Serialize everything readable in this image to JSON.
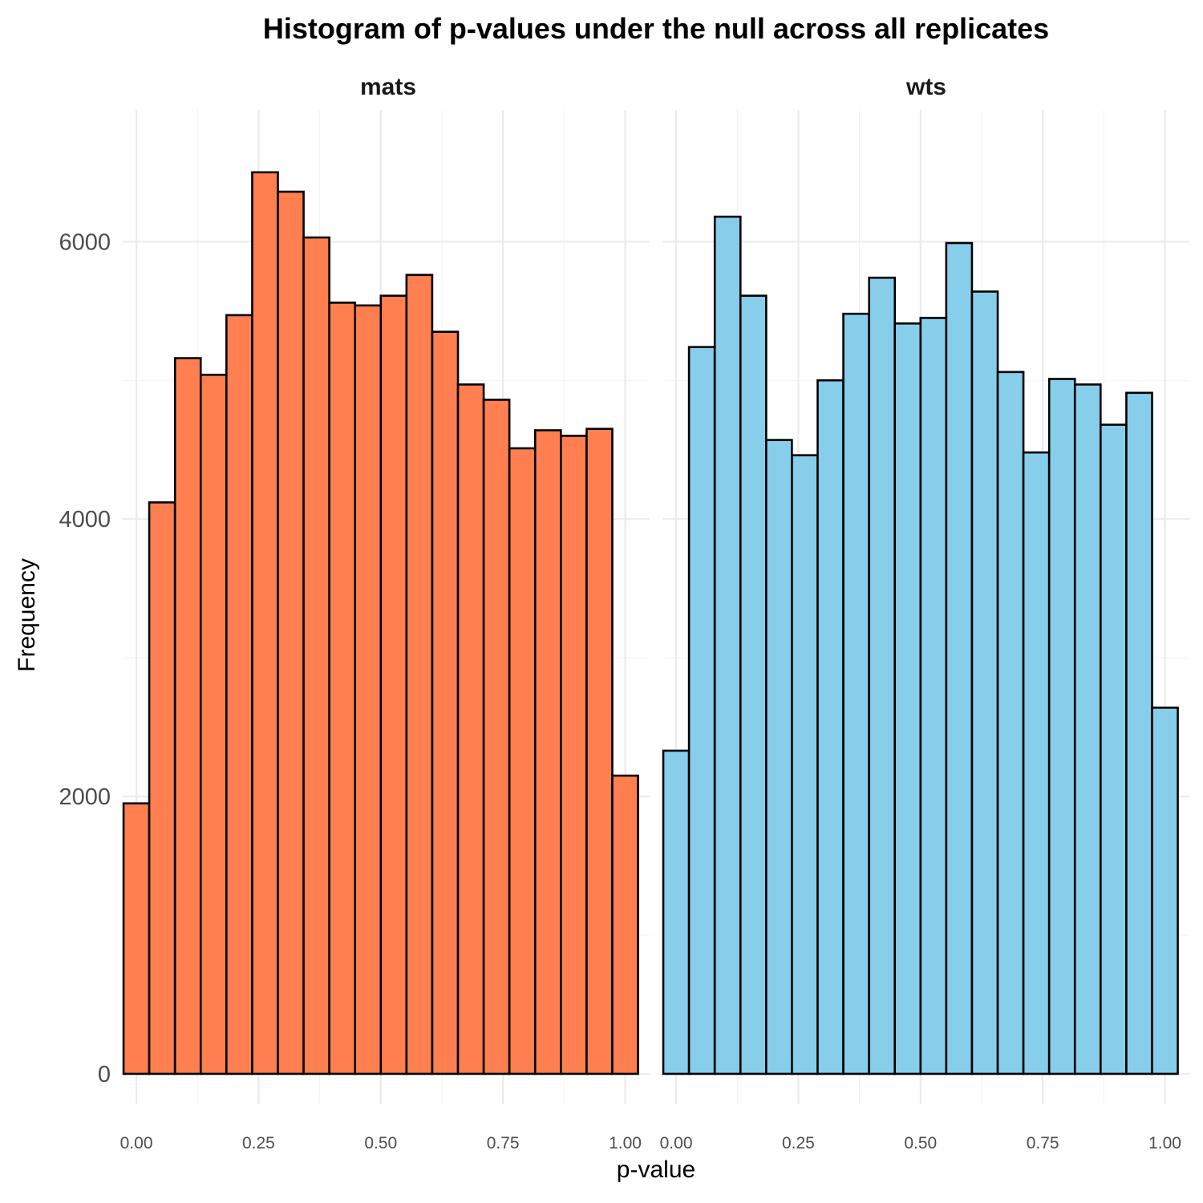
{
  "chart_data": {
    "type": "bar",
    "title": "Histogram of p-values under the null across all replicates",
    "xlabel": "p-value",
    "ylabel": "Frequency",
    "xlim": [
      -0.028,
      1.05
    ],
    "ylim": [
      -220,
      6950
    ],
    "x_ticks": [
      "0.00",
      "0.25",
      "0.50",
      "0.75",
      "1.00"
    ],
    "x_tick_values": [
      0,
      0.25,
      0.5,
      0.75,
      1
    ],
    "y_ticks": [
      "0",
      "2000",
      "4000",
      "6000"
    ],
    "y_tick_values": [
      0,
      2000,
      4000,
      6000
    ],
    "bin_width": 0.0526,
    "bin_centers": [
      0.0,
      0.0526,
      0.1053,
      0.1579,
      0.2105,
      0.2632,
      0.3158,
      0.3684,
      0.4211,
      0.4737,
      0.5263,
      0.5789,
      0.6316,
      0.6842,
      0.7368,
      0.7895,
      0.8421,
      0.8947,
      0.9474,
      1.0
    ],
    "grid": true,
    "panels": [
      {
        "name": "mats",
        "color": "#FF7F50",
        "values": [
          1950,
          4120,
          5160,
          5040,
          5470,
          6500,
          6360,
          6030,
          5560,
          5540,
          5610,
          5760,
          5350,
          4970,
          4860,
          4510,
          4640,
          4600,
          4650,
          2150
        ]
      },
      {
        "name": "wts",
        "color": "#87CEEB",
        "values": [
          2330,
          5240,
          6180,
          5610,
          4570,
          4460,
          5000,
          5480,
          5740,
          5410,
          5450,
          5990,
          5640,
          5060,
          4480,
          5010,
          4970,
          4680,
          4910,
          2640
        ]
      }
    ]
  }
}
